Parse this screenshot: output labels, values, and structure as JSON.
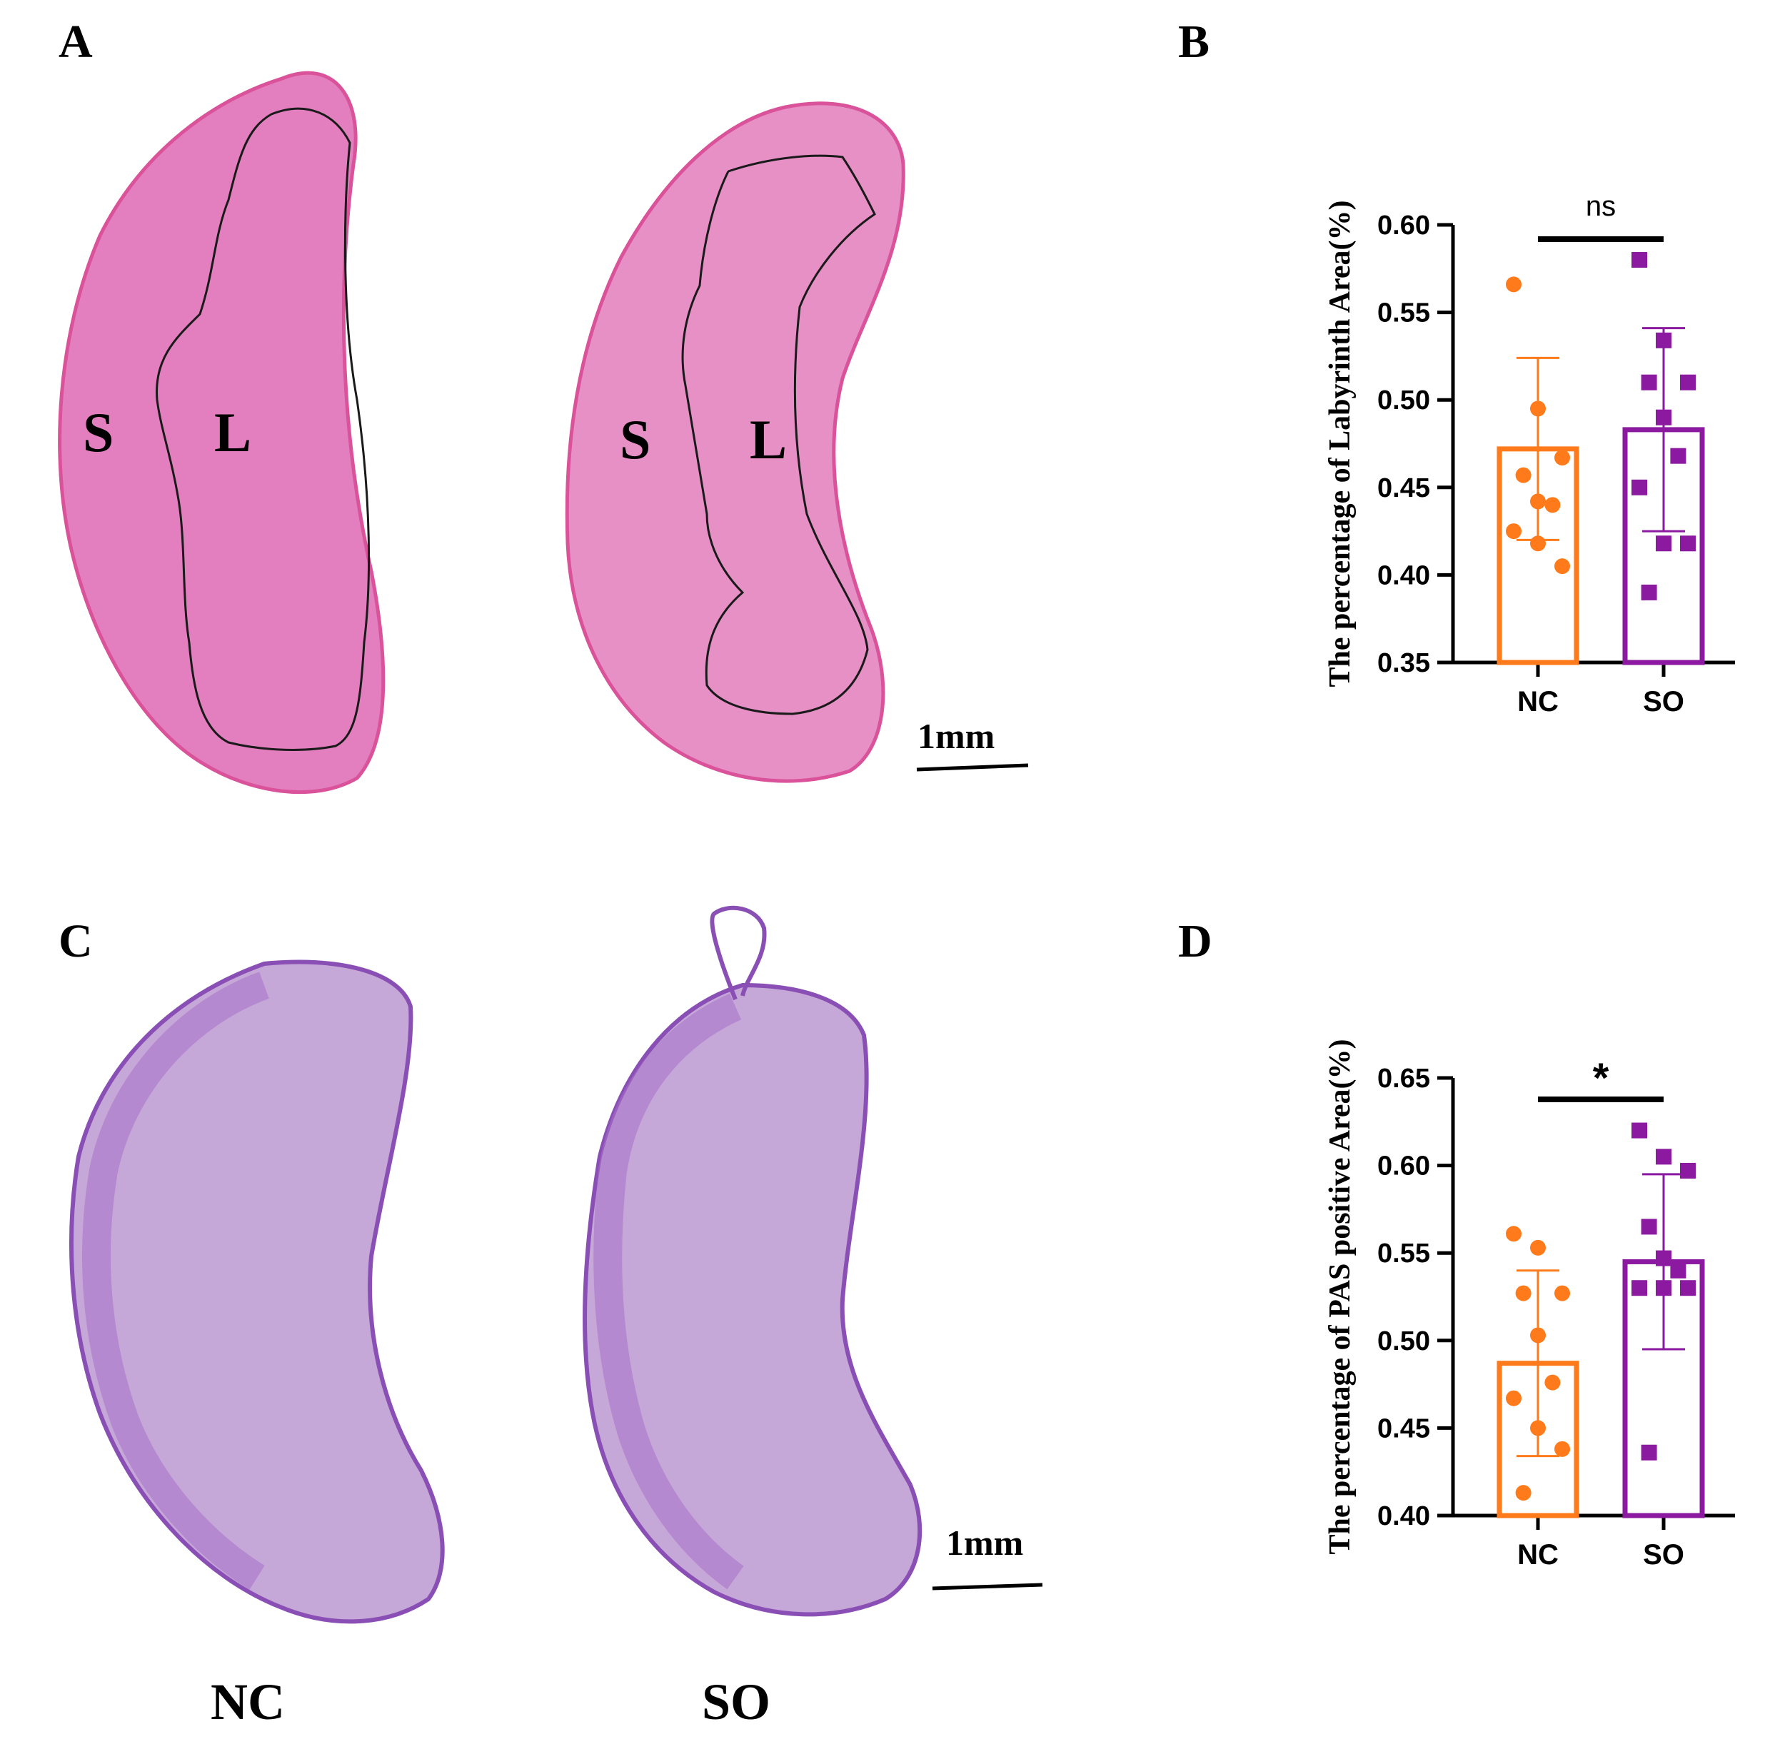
{
  "panels": {
    "A": "A",
    "B": "B",
    "C": "C",
    "D": "D"
  },
  "histology": {
    "he_region_labels": {
      "spongiotrophoblast": "S",
      "labyrinth": "L"
    },
    "scale_bar_label": "1mm",
    "group_labels": {
      "nc": "NC",
      "so": "SO"
    },
    "colors": {
      "he_stain": "#e07fbd",
      "pas_stain": "#b080cf",
      "pas_border": "#8a4fb5",
      "he_border": "#d9529a"
    }
  },
  "chart_data": [
    {
      "type": "bar",
      "panel": "B",
      "ylabel": "The percentage of Labyrinth Area(%)",
      "categories": [
        "NC",
        "SO"
      ],
      "values": [
        0.472,
        0.483
      ],
      "error_sd": [
        0.052,
        0.058
      ],
      "ylim": [
        0.35,
        0.6
      ],
      "yticks": [
        "0.35",
        "0.40",
        "0.45",
        "0.50",
        "0.55",
        "0.60"
      ],
      "points": [
        [
          0.566,
          0.495,
          0.467,
          0.457,
          0.442,
          0.44,
          0.425,
          0.418,
          0.405
        ],
        [
          0.58,
          0.534,
          0.51,
          0.51,
          0.49,
          0.468,
          0.45,
          0.418,
          0.418,
          0.39
        ]
      ],
      "significance": "ns",
      "colors": [
        "#ff7a1a",
        "#8b1aa0"
      ],
      "markers": [
        "circle",
        "square"
      ],
      "grid": false
    },
    {
      "type": "bar",
      "panel": "D",
      "ylabel": "The percentage of PAS positive Area(%)",
      "categories": [
        "NC",
        "SO"
      ],
      "values": [
        0.487,
        0.545
      ],
      "error_sd": [
        0.053,
        0.05
      ],
      "ylim": [
        0.4,
        0.65
      ],
      "yticks": [
        "0.40",
        "0.45",
        "0.50",
        "0.55",
        "0.60",
        "0.65"
      ],
      "points": [
        [
          0.561,
          0.553,
          0.527,
          0.527,
          0.503,
          0.476,
          0.467,
          0.45,
          0.438,
          0.413
        ],
        [
          0.62,
          0.605,
          0.597,
          0.565,
          0.547,
          0.54,
          0.53,
          0.53,
          0.53,
          0.436
        ]
      ],
      "significance": "*",
      "colors": [
        "#ff7a1a",
        "#8b1aa0"
      ],
      "markers": [
        "circle",
        "square"
      ],
      "grid": false
    }
  ]
}
